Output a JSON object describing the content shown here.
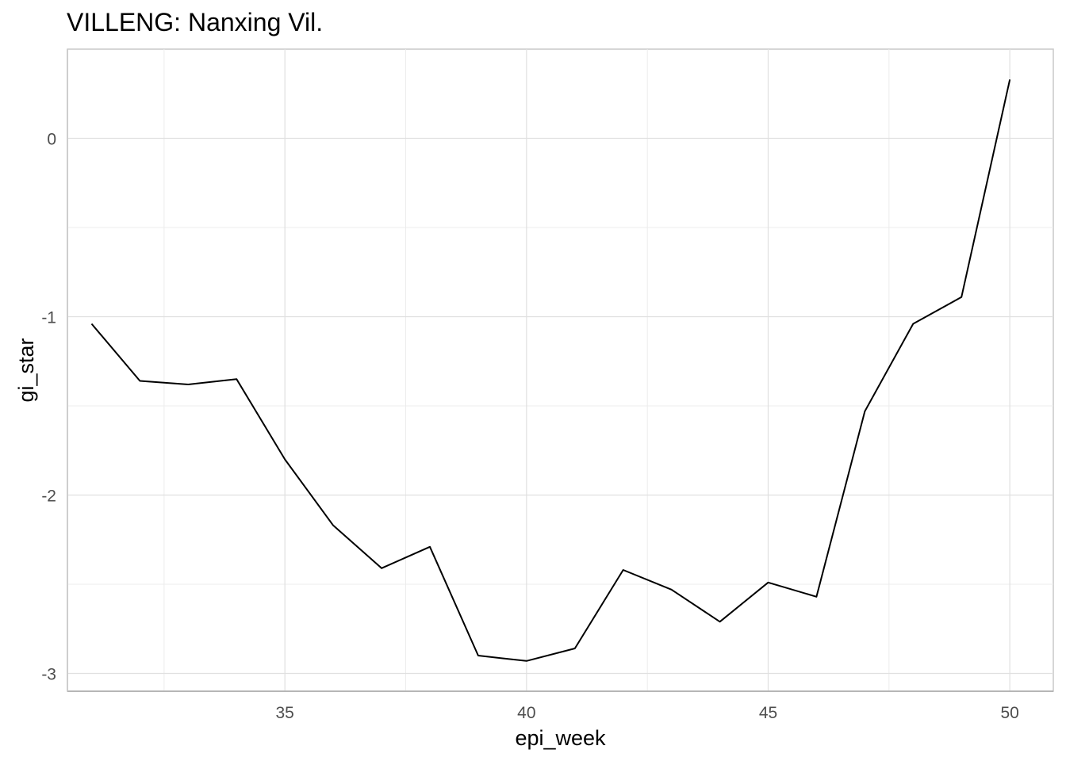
{
  "chart_data": {
    "type": "line",
    "title": "VILLENG: Nanxing Vil.",
    "xlabel": "epi_week",
    "ylabel": "gi_star",
    "xlim": [
      30.5,
      50.9
    ],
    "ylim": [
      -3.1,
      0.5
    ],
    "x_ticks": [
      35,
      40,
      45,
      50
    ],
    "y_ticks": [
      0,
      -1,
      -2,
      -3
    ],
    "x_tick_labels": [
      "35",
      "40",
      "45",
      "50"
    ],
    "y_tick_labels": [
      "0",
      "-1",
      "-2",
      "-3"
    ],
    "grid": true,
    "line_color": "#000000",
    "grid_color": "#e0e0e0",
    "series": [
      {
        "x": [
          31,
          32,
          33,
          34,
          35,
          36,
          37,
          38,
          39,
          40,
          41,
          42,
          43,
          44,
          45,
          46,
          47,
          48,
          49,
          50
        ],
        "values": [
          -1.04,
          -1.36,
          -1.38,
          -1.35,
          -1.8,
          -2.17,
          -2.41,
          -2.29,
          -2.9,
          -2.93,
          -2.86,
          -2.42,
          -2.53,
          -2.71,
          -2.49,
          -2.57,
          -1.53,
          -1.04,
          -0.89,
          0.33
        ]
      }
    ]
  }
}
